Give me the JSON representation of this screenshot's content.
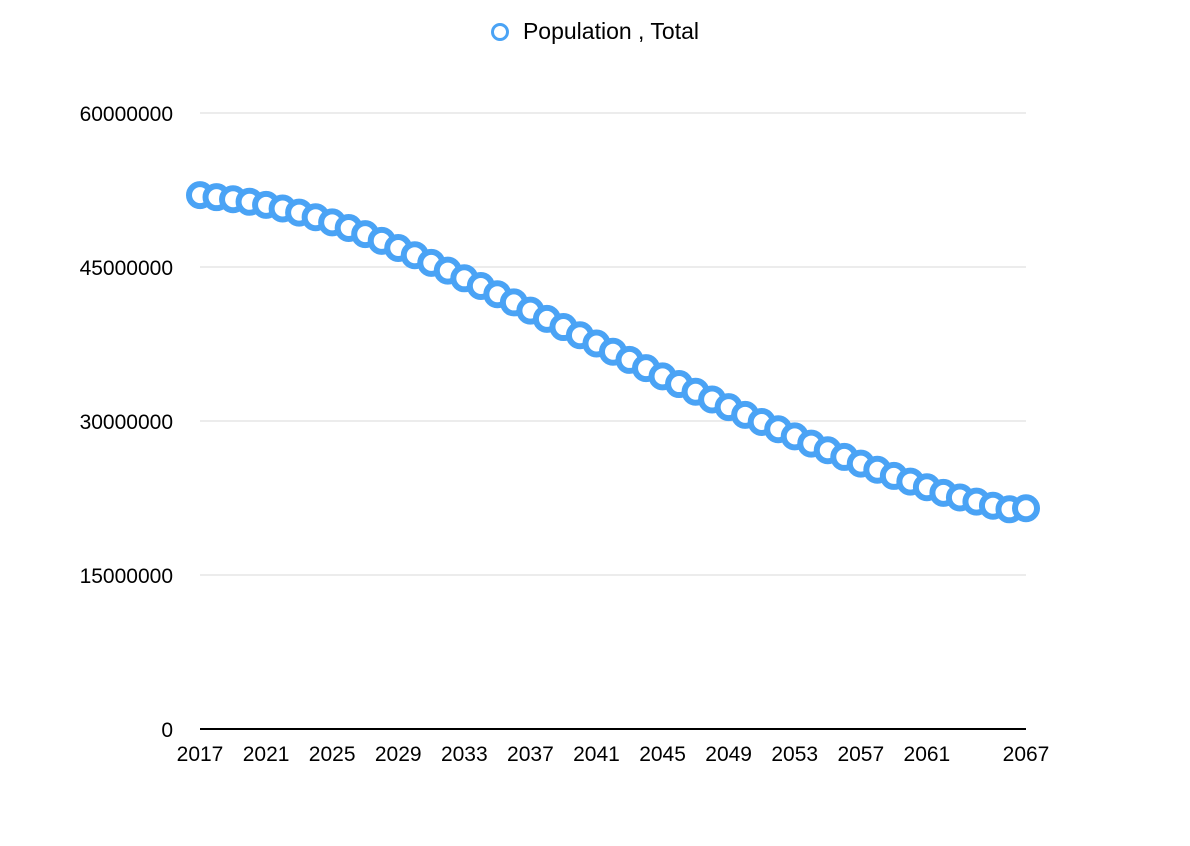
{
  "legend": {
    "label": "Population , Total"
  },
  "colors": {
    "series": "#4aa3f5",
    "grid": "#d9d9d9",
    "axis": "#000000"
  },
  "chart_data": {
    "type": "line",
    "marker": "hollow-circle",
    "line_visible": false,
    "grid": true,
    "legend_position": "top-center",
    "ylim": [
      0,
      60000000
    ],
    "yticks": [
      "0",
      "15000000",
      "30000000",
      "45000000",
      "60000000"
    ],
    "xlim": [
      2017,
      2067
    ],
    "xticks": [
      "2017",
      "2021",
      "2025",
      "2029",
      "2033",
      "2037",
      "2041",
      "2045",
      "2049",
      "2053",
      "2057",
      "2061",
      "2067"
    ],
    "series": [
      {
        "name": "Population , Total",
        "x": [
          2017,
          2018,
          2019,
          2020,
          2021,
          2022,
          2023,
          2024,
          2025,
          2026,
          2027,
          2028,
          2029,
          2030,
          2031,
          2032,
          2033,
          2034,
          2035,
          2036,
          2037,
          2038,
          2039,
          2040,
          2041,
          2042,
          2043,
          2044,
          2045,
          2046,
          2047,
          2048,
          2049,
          2050,
          2051,
          2052,
          2053,
          2054,
          2055,
          2056,
          2057,
          2058,
          2059,
          2060,
          2061,
          2062,
          2063,
          2064,
          2065,
          2066,
          2067
        ],
        "values": [
          52000000,
          51800000,
          51600000,
          51350000,
          51050000,
          50700000,
          50300000,
          49850000,
          49350000,
          48800000,
          48200000,
          47550000,
          46850000,
          46150000,
          45400000,
          44650000,
          43900000,
          43150000,
          42350000,
          41550000,
          40750000,
          39950000,
          39150000,
          38350000,
          37550000,
          36750000,
          35950000,
          35150000,
          34350000,
          33600000,
          32850000,
          32100000,
          31350000,
          30600000,
          29900000,
          29200000,
          28500000,
          27800000,
          27150000,
          26500000,
          25850000,
          25250000,
          24650000,
          24100000,
          23550000,
          23000000,
          22550000,
          22150000,
          21750000,
          21400000,
          21500000
        ]
      }
    ]
  }
}
